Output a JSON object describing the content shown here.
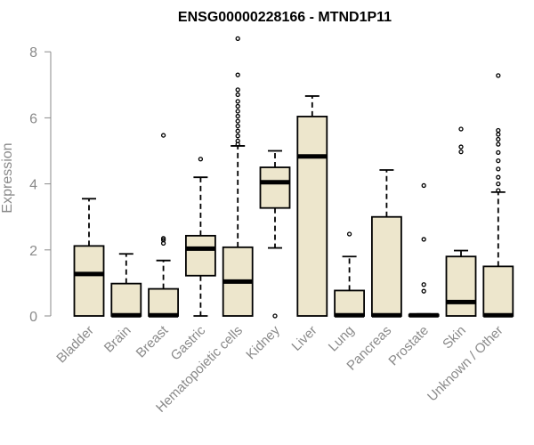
{
  "chart_data": {
    "type": "box",
    "title": "ENSG00000228166 - MTND1P11",
    "ylabel": "Expression",
    "xlabel": "",
    "ylim": [
      0,
      8.5
    ],
    "yticks": [
      "0",
      "2",
      "4",
      "6",
      "8"
    ],
    "box_fill": "#ede6cc",
    "box_stroke": "#000000",
    "axis_color": "#8a8a8a",
    "categories": [
      "Bladder",
      "Brain",
      "Breast",
      "Gastric",
      "Hematopoietic cells",
      "Kidney",
      "Liver",
      "Lung",
      "Pancreas",
      "Prostate",
      "Skin",
      "Unknown / Other"
    ],
    "boxes": [
      {
        "category": "Bladder",
        "whisker_low": 0,
        "q1": 0,
        "median": 1.27,
        "q3": 2.12,
        "whisker_high": 3.55,
        "outliers": []
      },
      {
        "category": "Brain",
        "whisker_low": 0,
        "q1": 0,
        "median": 0.02,
        "q3": 0.98,
        "whisker_high": 1.88,
        "outliers": []
      },
      {
        "category": "Breast",
        "whisker_low": 0,
        "q1": 0,
        "median": 0.02,
        "q3": 0.82,
        "whisker_high": 1.68,
        "outliers": [
          2.2,
          2.3,
          2.35,
          5.47
        ]
      },
      {
        "category": "Gastric",
        "whisker_low": 0,
        "q1": 1.22,
        "median": 2.04,
        "q3": 2.43,
        "whisker_high": 4.2,
        "outliers": [
          4.75
        ]
      },
      {
        "category": "Hematopoietic cells",
        "whisker_low": 0,
        "q1": 0,
        "median": 1.04,
        "q3": 2.08,
        "whisker_high": 5.15,
        "outliers": [
          5.2,
          5.3,
          5.45,
          5.6,
          5.75,
          5.9,
          6.05,
          6.2,
          6.35,
          6.5,
          6.7,
          6.85,
          7.3,
          8.4
        ]
      },
      {
        "category": "Kidney",
        "whisker_low": 2.06,
        "q1": 3.27,
        "median": 4.05,
        "q3": 4.5,
        "whisker_high": 5.0,
        "outliers": [
          0
        ]
      },
      {
        "category": "Liver",
        "whisker_low": 0,
        "q1": 0,
        "median": 4.83,
        "q3": 6.04,
        "whisker_high": 6.66,
        "outliers": []
      },
      {
        "category": "Lung",
        "whisker_low": 0,
        "q1": 0,
        "median": 0.02,
        "q3": 0.77,
        "whisker_high": 1.8,
        "outliers": [
          2.48
        ]
      },
      {
        "category": "Pancreas",
        "whisker_low": 0,
        "q1": 0,
        "median": 0.02,
        "q3": 3.0,
        "whisker_high": 4.42,
        "outliers": []
      },
      {
        "category": "Prostate",
        "whisker_low": 0,
        "q1": 0,
        "median": 0.02,
        "q3": 0.04,
        "whisker_high": 0.06,
        "outliers": [
          0.75,
          0.95,
          2.32,
          3.95
        ]
      },
      {
        "category": "Skin",
        "whisker_low": 0,
        "q1": 0,
        "median": 0.42,
        "q3": 1.8,
        "whisker_high": 1.98,
        "outliers": [
          4.97,
          5.12,
          5.66
        ]
      },
      {
        "category": "Unknown / Other",
        "whisker_low": 0,
        "q1": 0,
        "median": 0.02,
        "q3": 1.5,
        "whisker_high": 3.75,
        "outliers": [
          3.8,
          4.0,
          4.2,
          4.45,
          4.7,
          4.95,
          5.2,
          5.35,
          5.5,
          5.62,
          7.28
        ]
      }
    ]
  }
}
